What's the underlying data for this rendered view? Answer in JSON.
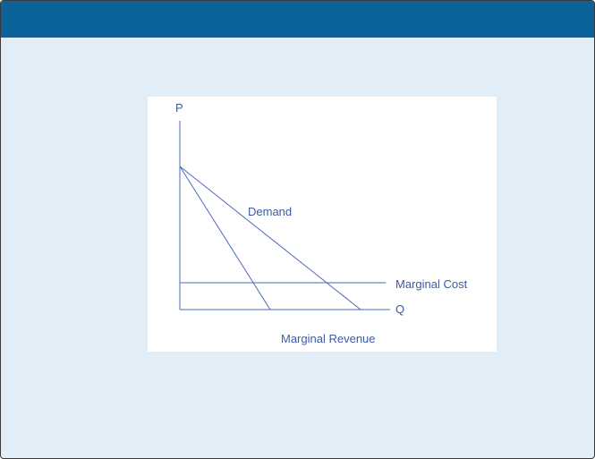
{
  "chart_data": {
    "type": "line",
    "title": "",
    "xlabel": "Q",
    "ylabel": "P",
    "xlim": [
      0,
      10
    ],
    "ylim": [
      0,
      10
    ],
    "grid": false,
    "legend": "none",
    "series": [
      {
        "name": "Demand",
        "x": [
          0,
          10
        ],
        "y": [
          8,
          0
        ]
      },
      {
        "name": "Marginal Revenue",
        "x": [
          0,
          5
        ],
        "y": [
          8,
          0
        ]
      },
      {
        "name": "Marginal Cost",
        "x": [
          0,
          11.4
        ],
        "y": [
          1.5,
          1.5
        ]
      }
    ],
    "annotations": [
      "Demand",
      "Marginal Revenue",
      "Marginal Cost"
    ]
  },
  "colors": {
    "header": "#0b6399",
    "background": "#e1eef7",
    "line": "#4a6bb8",
    "text": "#3b5aa8"
  }
}
